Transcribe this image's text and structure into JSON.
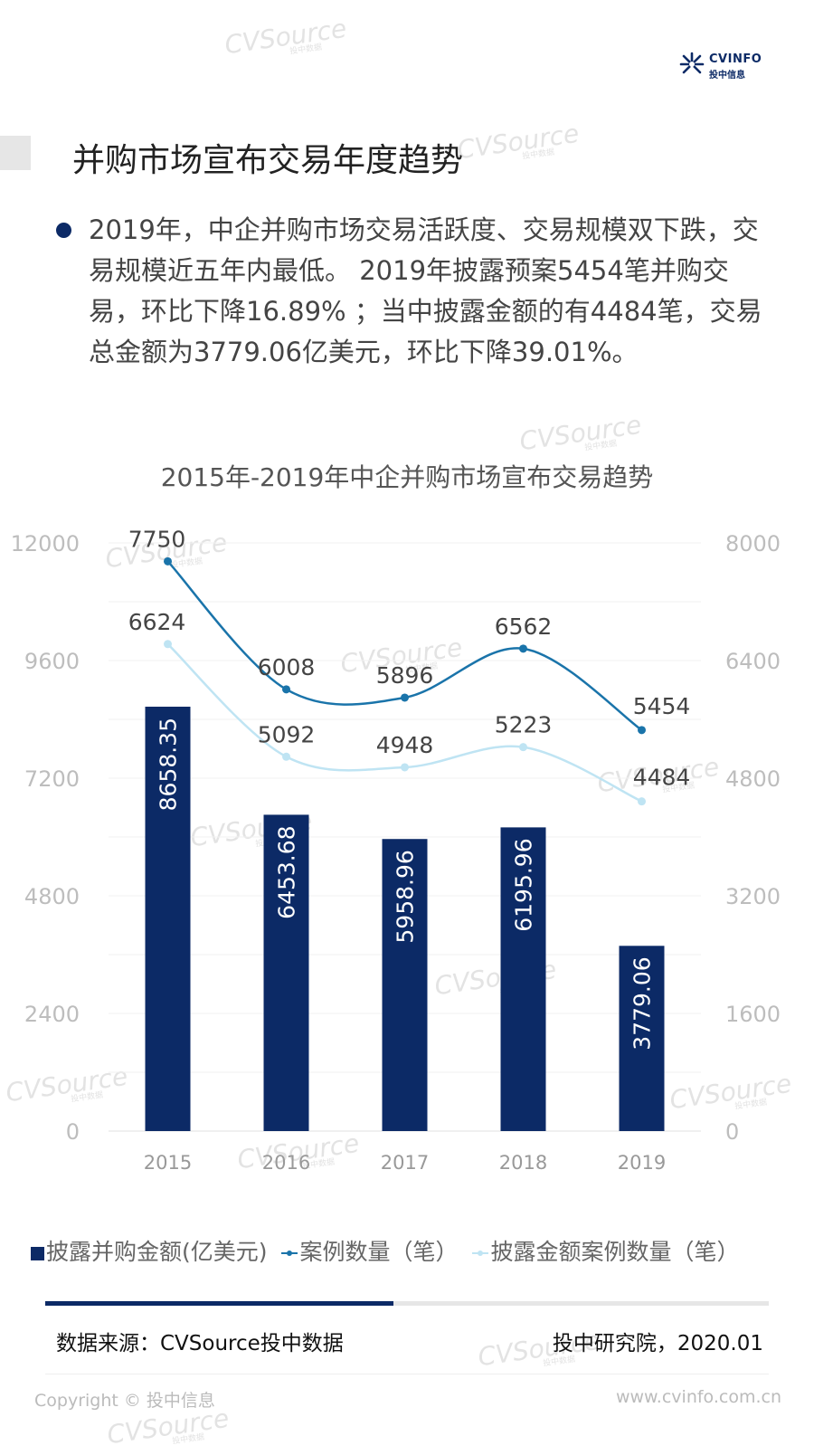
{
  "brand": {
    "name": "CVINFO",
    "subtitle": "投中信息",
    "watermark": "CVSource",
    "watermark_sub": "投中数据",
    "accent": "#0c2a66"
  },
  "page_title": "并购市场宣布交易年度趋势",
  "bullet_text": "2019年，中企并购市场交易活跃度、交易规模双下跌，交易规模近五年内最低。 2019年披露预案5454笔并购交易，环比下降16.89% ；当中披露金额的有4484笔，交易总金额为3779.06亿美元，环比下降39.01%。",
  "chart_data": {
    "type": "bar",
    "title": "2015年-2019年中企并购市场宣布交易趋势",
    "categories": [
      "2015",
      "2016",
      "2017",
      "2018",
      "2019"
    ],
    "y_left": {
      "ylim": [
        0,
        12000
      ],
      "ticks": [
        "0",
        "2400",
        "4800",
        "7200",
        "9600",
        "12000"
      ]
    },
    "y_right": {
      "ylim": [
        0,
        8000
      ],
      "ticks": [
        "0",
        "1600",
        "3200",
        "4800",
        "6400",
        "8000"
      ]
    },
    "series": [
      {
        "name": "披露并购金额(亿美元)",
        "type": "bar",
        "axis": "left",
        "color": "#0c2a66",
        "values": [
          8658.35,
          6453.68,
          5958.96,
          6195.96,
          3779.06
        ],
        "labels": [
          "8658.35",
          "6453.68",
          "5958.96",
          "6195.96",
          "3779.06"
        ]
      },
      {
        "name": "案例数量（笔）",
        "type": "line",
        "axis": "right",
        "color": "#1a74aa",
        "values": [
          7750,
          6008,
          5896,
          6562,
          5454
        ],
        "labels": [
          "7750",
          "6008",
          "5896",
          "6562",
          "5454"
        ]
      },
      {
        "name": "披露金额案例数量（笔）",
        "type": "line",
        "axis": "right",
        "color": "#bfe4f3",
        "values": [
          6624,
          5092,
          4948,
          5223,
          4484
        ],
        "labels": [
          "6624",
          "5092",
          "4948",
          "5223",
          "4484"
        ]
      }
    ],
    "grid": true,
    "legend": "bottom"
  },
  "legend": {
    "items": [
      "披露并购金额(亿美元)",
      "案例数量（笔）",
      "披露金额案例数量（笔）"
    ]
  },
  "footer": {
    "source": "数据来源：CVSource投中数据",
    "institute": "投中研究院，2020.01",
    "copyright": "Copyright © 投中信息",
    "website": "www.cvinfo.com.cn"
  }
}
